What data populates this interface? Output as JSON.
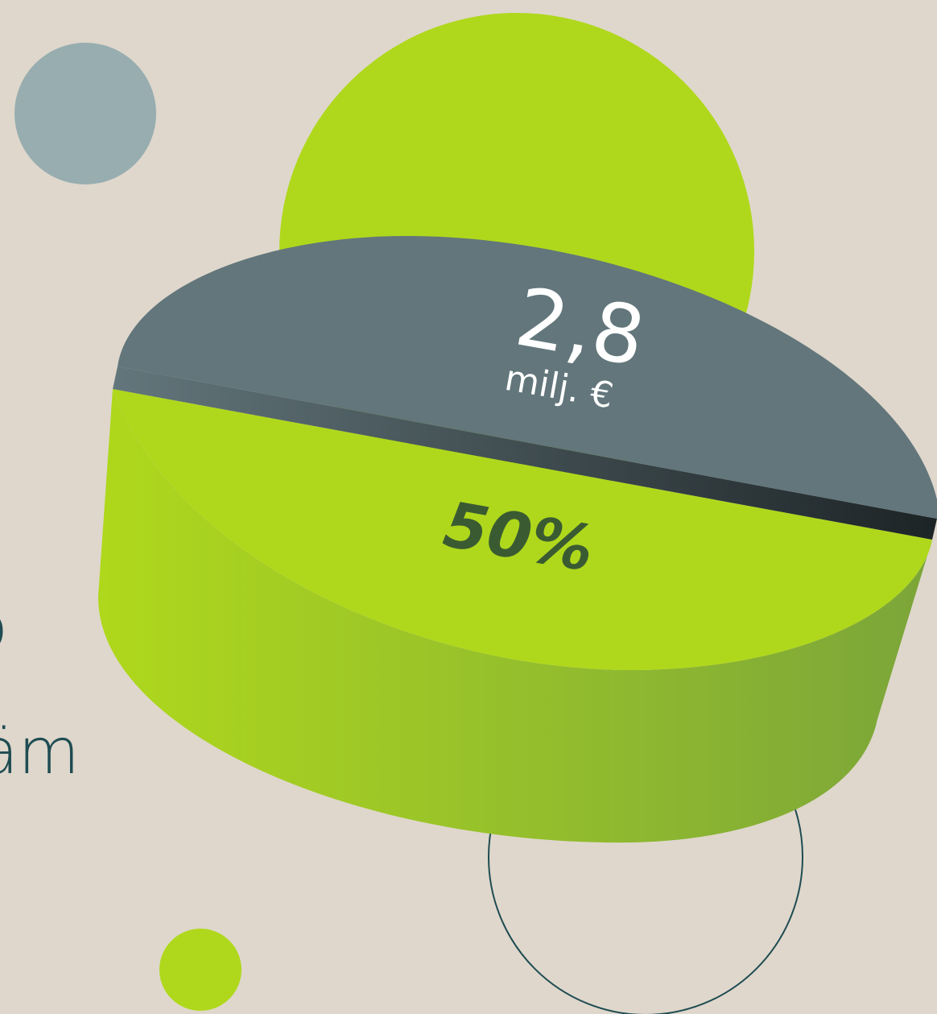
{
  "colors": {
    "background": "#dfd7cc",
    "accent_green": "#afd81c",
    "slate": "#62767b",
    "blue_gray": "#97adaf",
    "dark_teal": "#1f4c52",
    "label_green": "#3a5b32"
  },
  "chart_data": {
    "type": "pie",
    "style": "3d",
    "slices": [
      {
        "label": "50%",
        "value": 50,
        "color": "#afd81c"
      },
      {
        "label": "2,8 milj. €",
        "value": 50,
        "color": "#62767b"
      }
    ]
  },
  "labels": {
    "amount_value": "2,8",
    "amount_unit": "milj. €",
    "percent_value": "50%"
  },
  "cropped_text": {
    "line1": "o",
    "line2": "äm"
  }
}
